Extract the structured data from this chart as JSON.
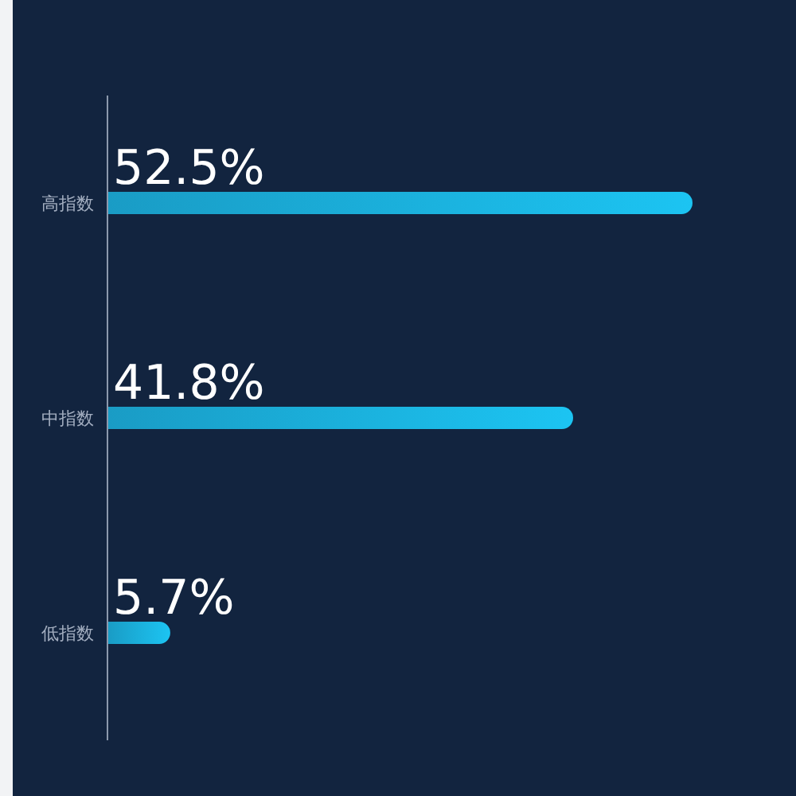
{
  "chart_data": {
    "type": "bar",
    "orientation": "horizontal",
    "categories": [
      "高指数",
      "中指数",
      "低指数"
    ],
    "series": [
      {
        "values": [
          52.5,
          41.8,
          5.7
        ],
        "color": "#1cc4f2",
        "value_labels": [
          "52.5%",
          "41.8%",
          "5.7%"
        ]
      }
    ]
  }
}
